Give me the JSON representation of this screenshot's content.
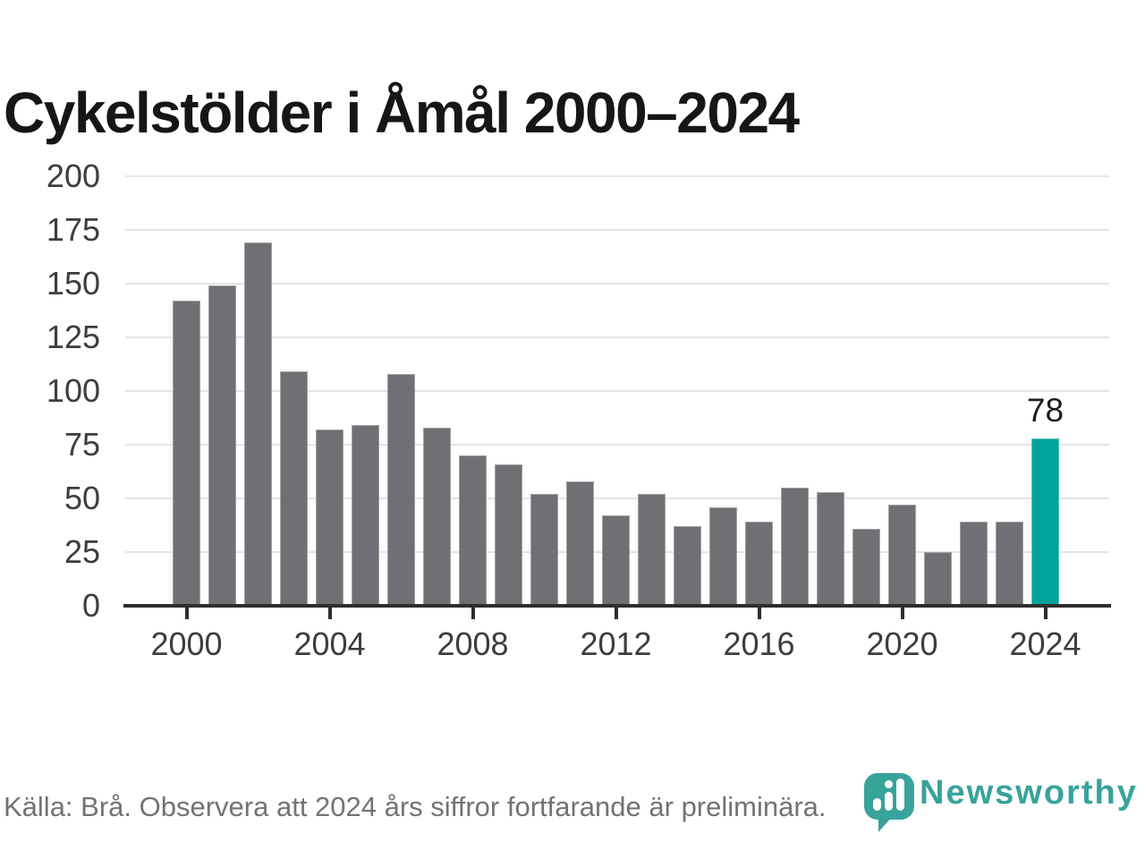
{
  "title": "Cykelstölder i Åmål 2000–2024",
  "source_note": "Källa: Brå. Observera att 2024 års siffror fortfarande är preliminära.",
  "branding": {
    "wordmark": "Newsworthy",
    "color": "#38A39B"
  },
  "chart_data": {
    "type": "bar",
    "title": "Cykelstölder i Åmål 2000–2024",
    "categories": [
      "2000",
      "2001",
      "2002",
      "2003",
      "2004",
      "2005",
      "2006",
      "2007",
      "2008",
      "2009",
      "2010",
      "2011",
      "2012",
      "2013",
      "2014",
      "2015",
      "2016",
      "2017",
      "2018",
      "2019",
      "2020",
      "2021",
      "2022",
      "2023",
      "2024"
    ],
    "values": [
      142,
      149,
      169,
      109,
      82,
      84,
      108,
      83,
      70,
      66,
      52,
      58,
      42,
      52,
      37,
      46,
      39,
      55,
      53,
      36,
      47,
      25,
      39,
      39,
      78
    ],
    "x_ticks": [
      "2000",
      "2004",
      "2008",
      "2012",
      "2016",
      "2020",
      "2024"
    ],
    "y_ticks": [
      0,
      25,
      50,
      75,
      100,
      125,
      150,
      175,
      200
    ],
    "ylim": [
      0,
      200
    ],
    "grid": true,
    "legend_position": "none",
    "bar_color": "#6F6F74",
    "grid_color": "#E4E4E4",
    "axis_color": "#2E2E2E",
    "tick_label_color": "#3D3D3D",
    "highlight": {
      "index": 24,
      "category": "2024",
      "value": 78,
      "label": "78",
      "color": "#00A39A"
    }
  }
}
